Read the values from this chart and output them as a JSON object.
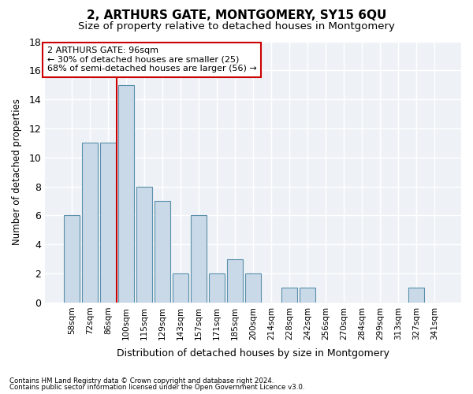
{
  "title1": "2, ARTHURS GATE, MONTGOMERY, SY15 6QU",
  "title2": "Size of property relative to detached houses in Montgomery",
  "xlabel": "Distribution of detached houses by size in Montgomery",
  "ylabel": "Number of detached properties",
  "categories": [
    "58sqm",
    "72sqm",
    "86sqm",
    "100sqm",
    "115sqm",
    "129sqm",
    "143sqm",
    "157sqm",
    "171sqm",
    "185sqm",
    "200sqm",
    "214sqm",
    "228sqm",
    "242sqm",
    "256sqm",
    "270sqm",
    "284sqm",
    "299sqm",
    "313sqm",
    "327sqm",
    "341sqm"
  ],
  "values": [
    6,
    11,
    11,
    15,
    8,
    7,
    2,
    6,
    2,
    3,
    2,
    0,
    1,
    1,
    0,
    0,
    0,
    0,
    0,
    1,
    0
  ],
  "bar_color": "#c9d9e8",
  "bar_edge_color": "#5a8faa",
  "vline_index": 3,
  "vline_color": "#cc0000",
  "annotation_line1": "2 ARTHURS GATE: 96sqm",
  "annotation_line2": "← 30% of detached houses are smaller (25)",
  "annotation_line3": "68% of semi-detached houses are larger (56) →",
  "annotation_box_color": "#ffffff",
  "annotation_box_edge": "#cc0000",
  "ylim": [
    0,
    18
  ],
  "yticks": [
    0,
    2,
    4,
    6,
    8,
    10,
    12,
    14,
    16,
    18
  ],
  "footer1": "Contains HM Land Registry data © Crown copyright and database right 2024.",
  "footer2": "Contains public sector information licensed under the Open Government Licence v3.0.",
  "bg_color": "#ffffff",
  "plot_bg_color": "#eef2f7",
  "grid_color": "#ffffff",
  "title1_fontsize": 11,
  "title2_fontsize": 9.5,
  "xlabel_fontsize": 9,
  "ylabel_fontsize": 8.5
}
